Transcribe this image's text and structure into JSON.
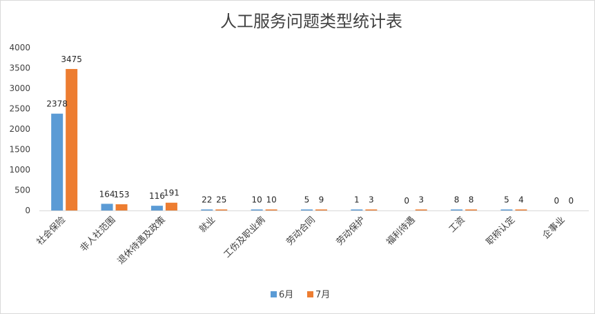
{
  "chart_data": {
    "type": "bar",
    "title": "人工服务问题类型统计表",
    "xlabel": "",
    "ylabel": "",
    "ylim": [
      0,
      4000
    ],
    "yticks": [
      0,
      500,
      1000,
      1500,
      2000,
      2500,
      3000,
      3500,
      4000
    ],
    "grid": false,
    "legend_position": "bottom",
    "categories": [
      "社会保险",
      "非人社范围",
      "退休待遇及政策",
      "就业",
      "工伤及职业病",
      "劳动合同",
      "劳动保护",
      "福利待遇",
      "工资",
      "职称认定",
      "企事业"
    ],
    "series": [
      {
        "name": "6月",
        "color": "#5b9bd5",
        "values": [
          2378,
          164,
          116,
          22,
          10,
          5,
          1,
          0,
          8,
          5,
          0
        ]
      },
      {
        "name": "7月",
        "color": "#ed7d31",
        "values": [
          3475,
          153,
          191,
          25,
          10,
          9,
          3,
          3,
          8,
          4,
          0
        ]
      }
    ]
  }
}
